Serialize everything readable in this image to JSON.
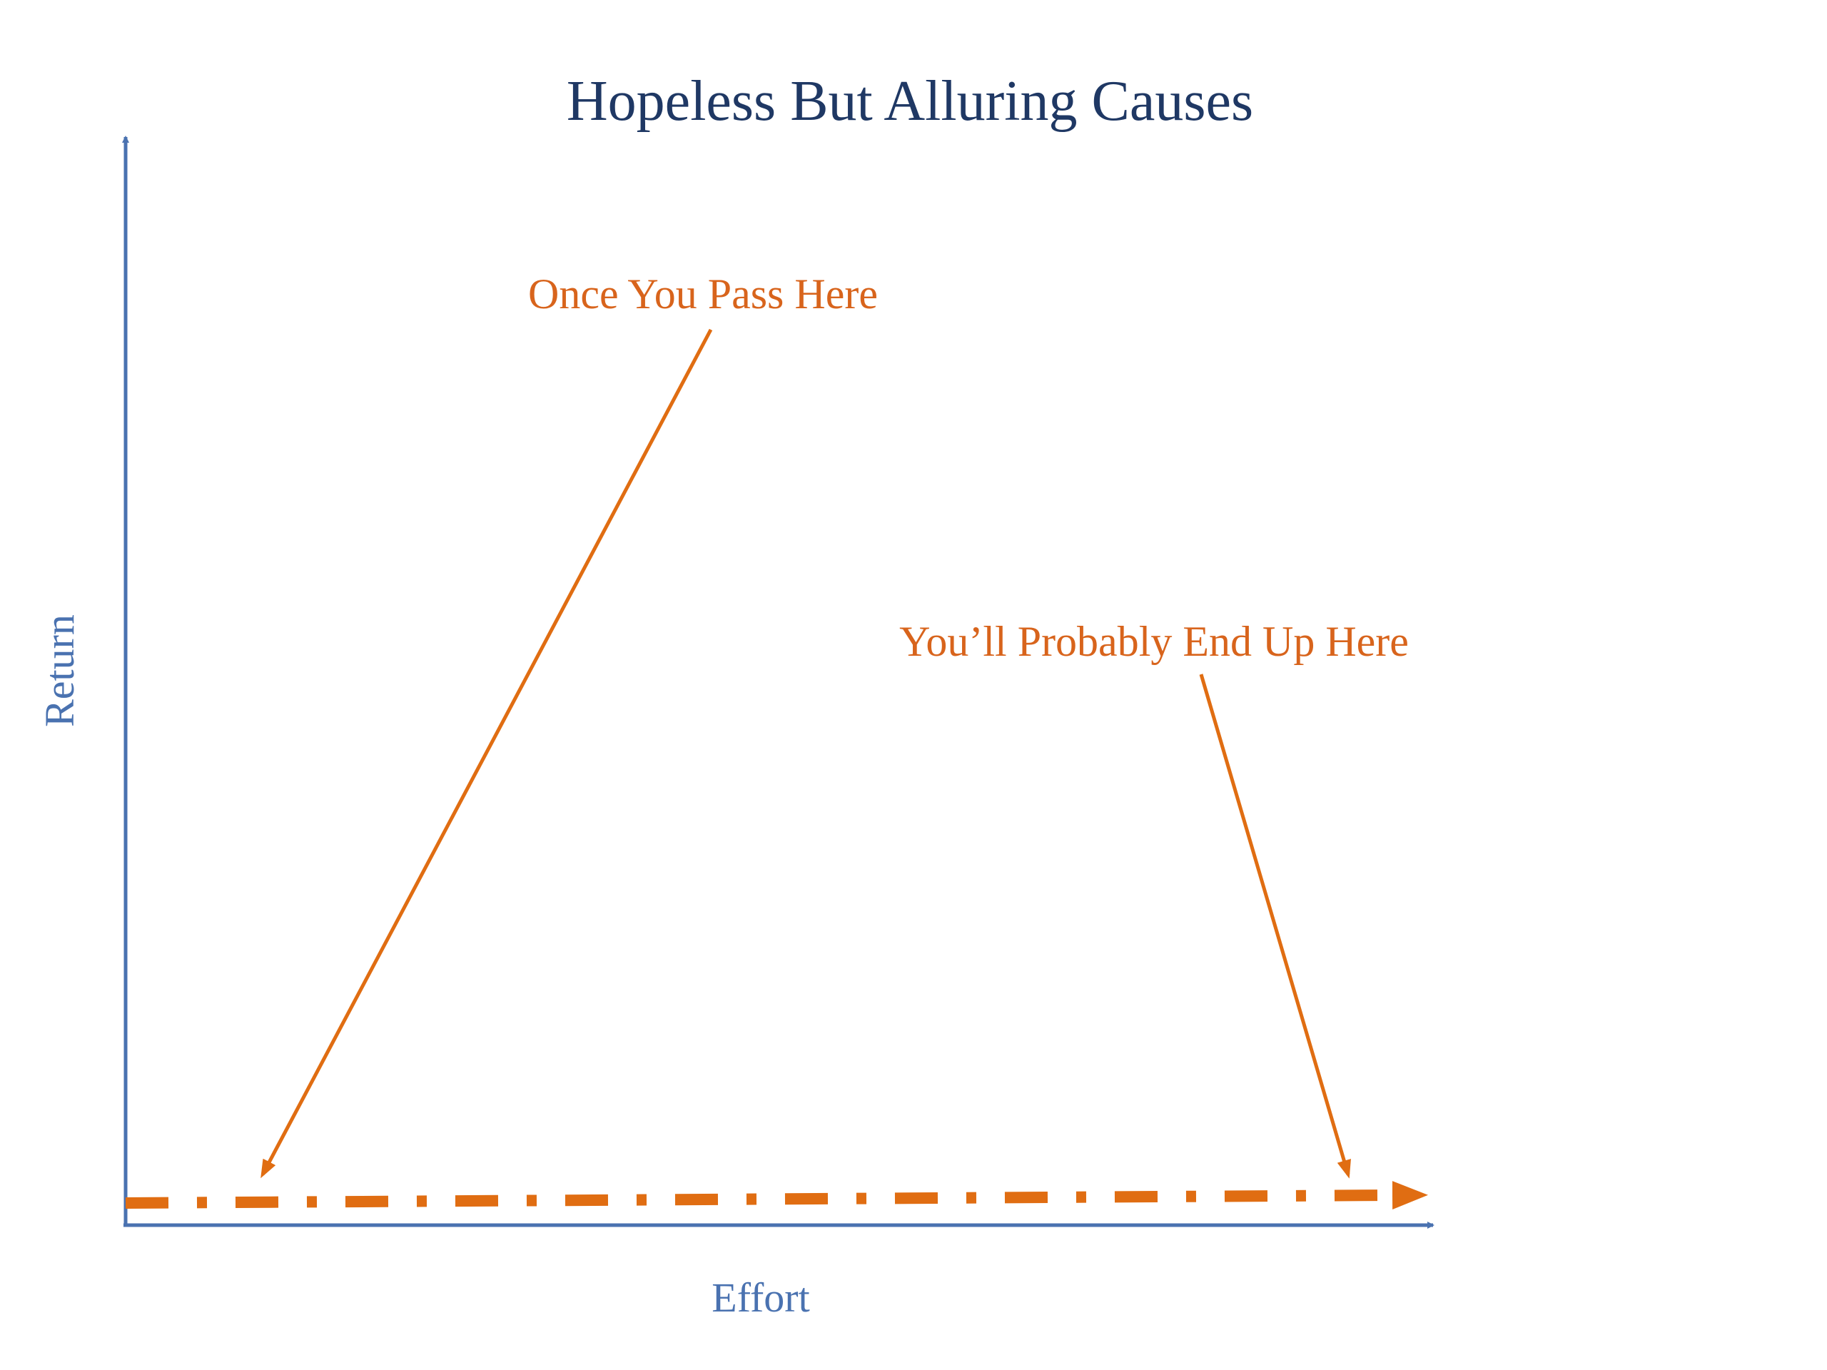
{
  "title": "Hopeless But Alluring Causes",
  "axes": {
    "y_label": "Return",
    "x_label": "Effort"
  },
  "annotations": [
    {
      "label": "Once You Pass Here"
    },
    {
      "label": "You’ll Probably End Up Here"
    }
  ]
}
